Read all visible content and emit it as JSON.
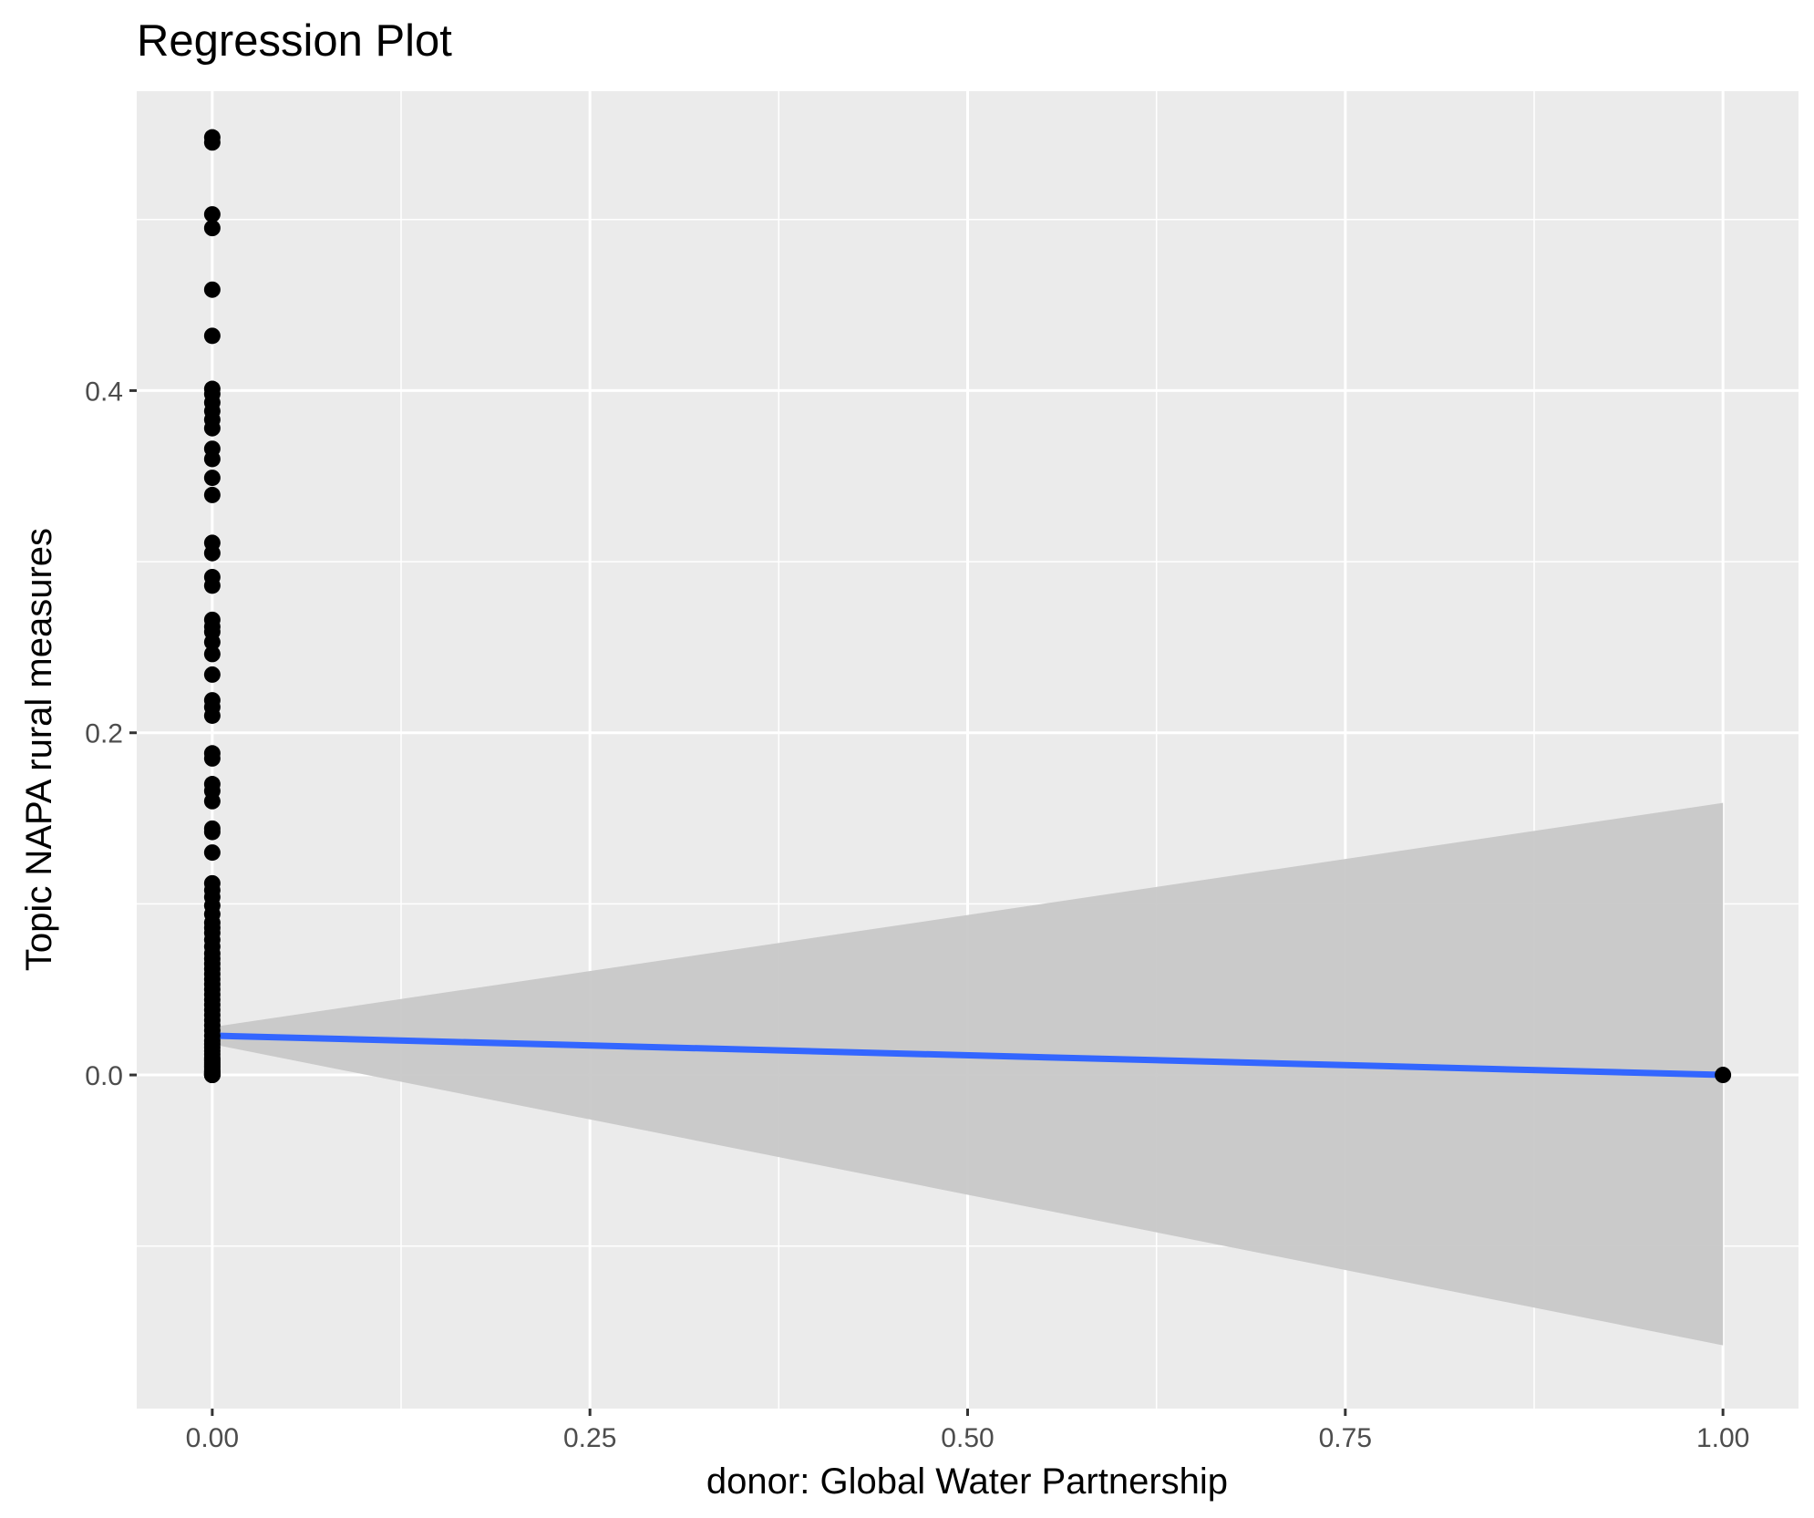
{
  "chart_data": {
    "type": "scatter",
    "title": "Regression Plot",
    "xlabel": "donor: Global Water Partnership",
    "ylabel": "Topic NAPA rural measures",
    "xlim": [
      -0.05,
      1.05
    ],
    "ylim": [
      -0.195,
      0.575
    ],
    "x_ticks": [
      0.0,
      0.25,
      0.5,
      0.75,
      1.0
    ],
    "x_tick_labels": [
      "0.00",
      "0.25",
      "0.50",
      "0.75",
      "1.00"
    ],
    "y_ticks": [
      0.0,
      0.2,
      0.4
    ],
    "y_tick_labels": [
      "0.0",
      "0.2",
      "0.4"
    ],
    "grid": true,
    "colors": {
      "panel_background": "#ebebeb",
      "grid_line": "#ffffff",
      "points": "#000000",
      "regression_line": "#3366ff",
      "confidence_band": "#c8c8c8"
    },
    "series": [
      {
        "type": "scatter",
        "x": [
          0,
          0,
          0,
          0,
          0,
          0,
          0,
          0,
          0,
          0,
          0,
          0,
          0,
          0,
          0,
          0,
          0,
          0,
          0,
          0,
          0,
          0,
          0,
          0,
          0,
          0,
          0,
          0,
          0,
          0,
          0,
          0,
          0,
          0,
          0,
          0,
          0,
          0,
          0,
          0,
          0,
          0,
          0,
          0,
          0,
          0,
          0,
          0,
          0,
          0,
          0,
          0,
          0,
          0,
          0,
          0,
          0,
          0,
          0,
          0,
          0,
          0,
          0,
          0,
          0,
          0,
          0,
          0,
          0,
          0,
          0,
          0,
          0,
          0,
          0,
          0,
          0,
          0,
          0,
          0,
          0,
          0,
          0,
          0,
          0,
          1
        ],
        "y": [
          0.548,
          0.545,
          0.503,
          0.495,
          0.459,
          0.432,
          0.401,
          0.398,
          0.393,
          0.388,
          0.383,
          0.378,
          0.366,
          0.36,
          0.349,
          0.339,
          0.311,
          0.305,
          0.291,
          0.286,
          0.266,
          0.262,
          0.259,
          0.253,
          0.246,
          0.234,
          0.219,
          0.215,
          0.21,
          0.188,
          0.185,
          0.17,
          0.166,
          0.16,
          0.144,
          0.142,
          0.13,
          0.112,
          0.108,
          0.104,
          0.099,
          0.094,
          0.089,
          0.086,
          0.083,
          0.079,
          0.075,
          0.071,
          0.068,
          0.065,
          0.062,
          0.059,
          0.056,
          0.053,
          0.05,
          0.047,
          0.044,
          0.041,
          0.038,
          0.035,
          0.032,
          0.029,
          0.026,
          0.023,
          0.02,
          0.018,
          0.016,
          0.014,
          0.012,
          0.01,
          0.009,
          0.008,
          0.007,
          0.006,
          0.005,
          0.004,
          0.003,
          0.002,
          0.002,
          0.001,
          0.001,
          0.0,
          0.0,
          0.0,
          0.0,
          0.0
        ]
      },
      {
        "type": "line",
        "x": [
          0,
          1
        ],
        "y": [
          0.023,
          0.0
        ]
      },
      {
        "type": "area",
        "x": [
          0,
          1
        ],
        "lower": [
          0.018,
          -0.158
        ],
        "upper": [
          0.028,
          0.159
        ]
      }
    ]
  }
}
